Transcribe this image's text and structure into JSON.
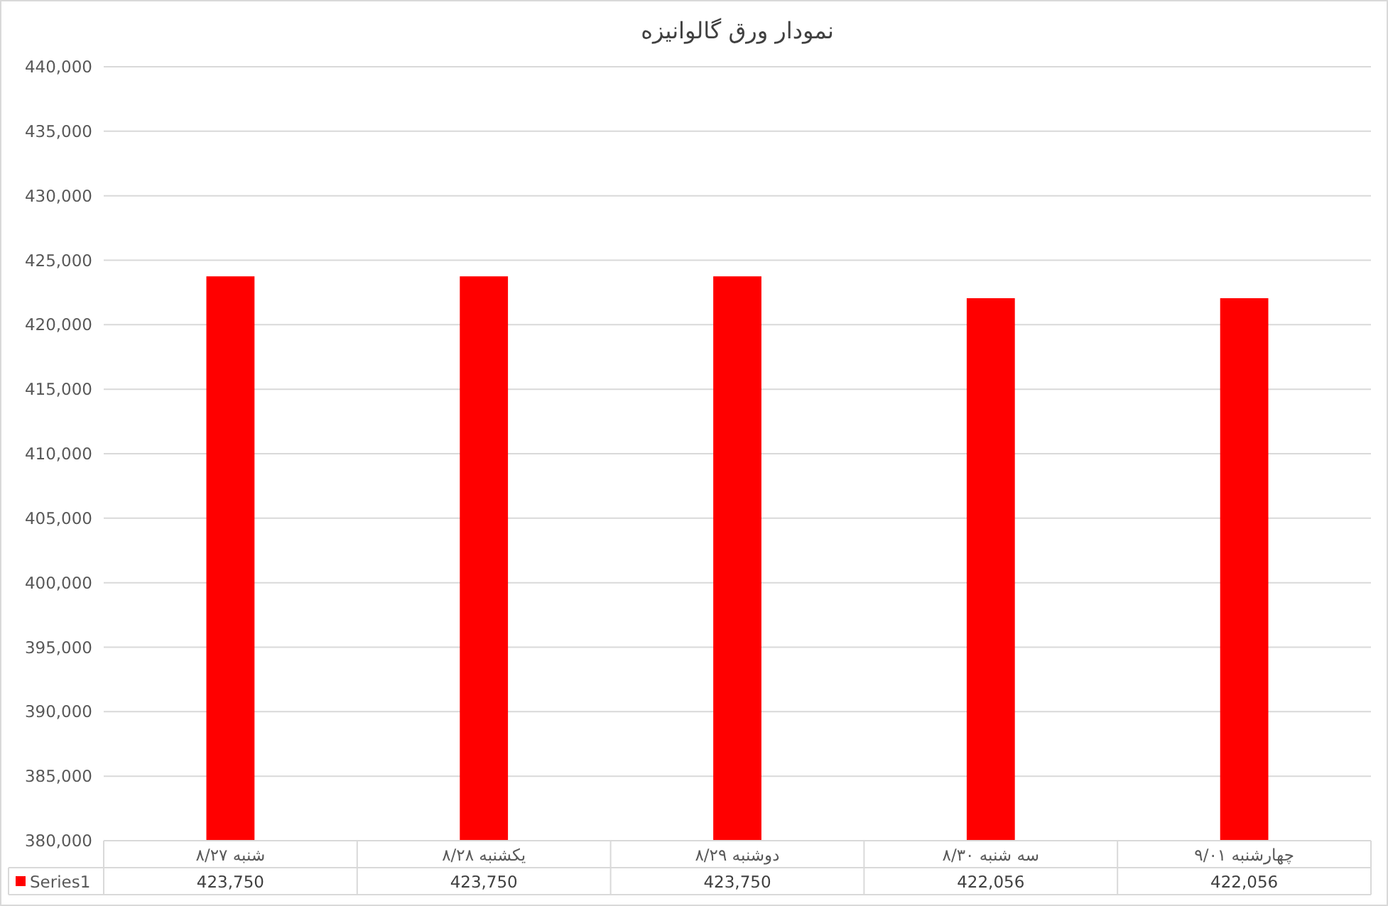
{
  "chart_data": {
    "type": "bar",
    "title": "نمودار ورق گالوانیزه",
    "categories": [
      "شنبه ۸/۲۷",
      "یکشنبه ۸/۲۸",
      "دوشنبه ۸/۲۹",
      "سه شنبه ۸/۳۰",
      "چهارشنبه ۹/۰۱"
    ],
    "series": [
      {
        "name": "Series1",
        "color": "#ff0000",
        "values": [
          423750,
          423750,
          423750,
          422056,
          422056
        ],
        "value_labels": [
          "423,750",
          "423,750",
          "423,750",
          "422,056",
          "422,056"
        ]
      }
    ],
    "ylim": [
      380000,
      440000
    ],
    "yticks": [
      {
        "value": 380000,
        "label": "380,000"
      },
      {
        "value": 385000,
        "label": "385,000"
      },
      {
        "value": 390000,
        "label": "390,000"
      },
      {
        "value": 395000,
        "label": "395,000"
      },
      {
        "value": 400000,
        "label": "400,000"
      },
      {
        "value": 405000,
        "label": "405,000"
      },
      {
        "value": 410000,
        "label": "410,000"
      },
      {
        "value": 415000,
        "label": "415,000"
      },
      {
        "value": 420000,
        "label": "420,000"
      },
      {
        "value": 425000,
        "label": "425,000"
      },
      {
        "value": 430000,
        "label": "430,000"
      },
      {
        "value": 435000,
        "label": "435,000"
      },
      {
        "value": 440000,
        "label": "440,000"
      }
    ],
    "grid": "y",
    "legend": "bottom"
  }
}
